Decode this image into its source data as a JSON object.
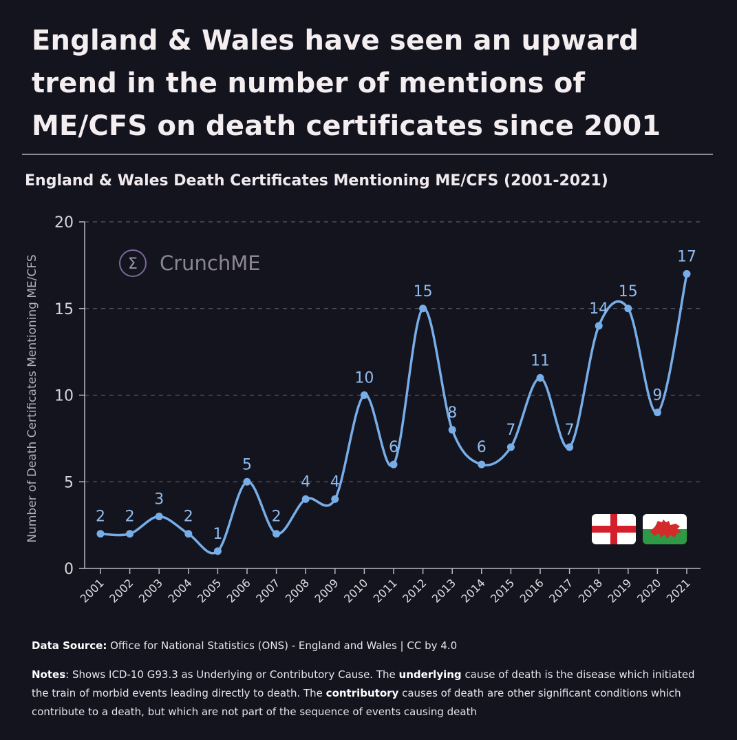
{
  "headline": {
    "line1": "England & Wales have seen an upward",
    "line2": "trend in the number of mentions of",
    "line3": "ME/CFS on death certificates since 2001"
  },
  "chart_data": {
    "type": "line",
    "title": "England & Wales Death Certificates Mentioning ME/CFS (2001-2021)",
    "xlabel": "",
    "ylabel": "Number of Death Certificates Mentioning ME/CFS",
    "categories": [
      "2001",
      "2002",
      "2003",
      "2004",
      "2005",
      "2006",
      "2007",
      "2008",
      "2009",
      "2010",
      "2011",
      "2012",
      "2013",
      "2014",
      "2015",
      "2016",
      "2017",
      "2018",
      "2019",
      "2020",
      "2021"
    ],
    "values": [
      2,
      2,
      3,
      2,
      1,
      5,
      2,
      4,
      4,
      10,
      6,
      15,
      8,
      6,
      7,
      11,
      7,
      14,
      15,
      9,
      17
    ],
    "ylim": [
      0,
      20
    ],
    "yticks": [
      0,
      5,
      10,
      15,
      20
    ],
    "grid": "horizontal dashed",
    "line_color": "#78aee8",
    "label_color": "#8fbcee"
  },
  "watermark": {
    "symbol": "Σ",
    "text": "CrunchME"
  },
  "flags": {
    "england": "england-flag-icon",
    "wales": "wales-flag-icon"
  },
  "source": {
    "label": "Data Source:",
    "text": " Office for National Statistics (ONS) - England and Wales | CC by 4.0"
  },
  "notes": {
    "label": "Notes",
    "part1": ": Shows ICD-10 G93.3 as Underlying or Contributory Cause. The ",
    "bold1": "underlying",
    "part2": " cause of death is the disease which initiated the train of morbid events leading directly to death. The ",
    "bold2": "contributory",
    "part3": " causes of death are other significant conditions which contribute to a death, but which are not part of the sequence of events causing death"
  }
}
